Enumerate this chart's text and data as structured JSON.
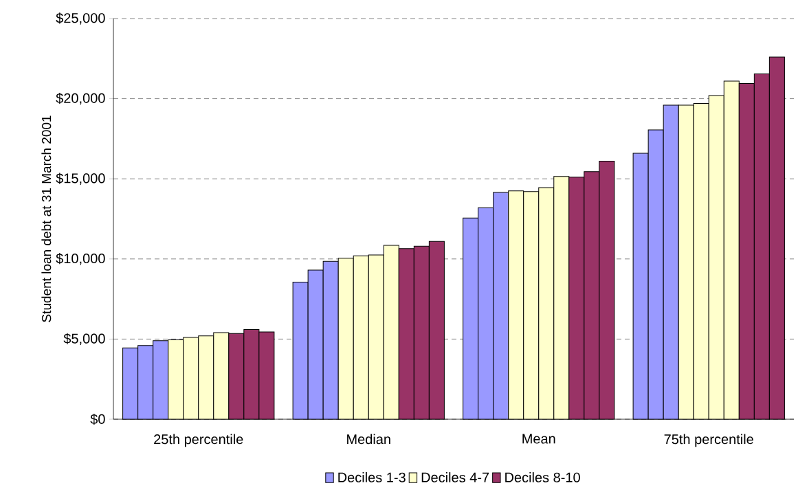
{
  "chart_data": {
    "type": "bar",
    "ylabel": "Student loan debt at 31 March 2001",
    "categories": [
      "25th percentile",
      "Median",
      "Mean",
      "75th percentile"
    ],
    "series": [
      {
        "name": "Deciles 1-3",
        "color": "#9999ff",
        "values": [
          4450,
          8550,
          12550,
          16600
        ]
      },
      {
        "color": "#9999ff",
        "values": [
          4600,
          9300,
          13200,
          18050
        ]
      },
      {
        "color": "#9999ff",
        "values": [
          4900,
          9850,
          14150,
          19600
        ]
      },
      {
        "name": "Deciles 4-7",
        "color": "#ffffcc",
        "values": [
          4950,
          10050,
          14250,
          19600
        ]
      },
      {
        "color": "#ffffcc",
        "values": [
          5100,
          10200,
          14200,
          19700
        ]
      },
      {
        "color": "#ffffcc",
        "values": [
          5200,
          10250,
          14450,
          20200
        ]
      },
      {
        "color": "#ffffcc",
        "values": [
          5400,
          10850,
          15150,
          21100
        ]
      },
      {
        "name": "Deciles 8-10",
        "color": "#993366",
        "values": [
          5350,
          10650,
          15100,
          20950
        ]
      },
      {
        "color": "#993366",
        "values": [
          5600,
          10800,
          15450,
          21550
        ]
      },
      {
        "color": "#993366",
        "values": [
          5450,
          11100,
          16100,
          22600
        ]
      }
    ],
    "ylim": [
      0,
      25000
    ],
    "yticks": [
      {
        "value": 0,
        "label": "$0"
      },
      {
        "value": 5000,
        "label": "$5,000"
      },
      {
        "value": 10000,
        "label": "$10,000"
      },
      {
        "value": 15000,
        "label": "$15,000"
      },
      {
        "value": 20000,
        "label": "$20,000"
      },
      {
        "value": 25000,
        "label": "$25,000"
      }
    ],
    "grid": "y",
    "legend": "bottom"
  }
}
